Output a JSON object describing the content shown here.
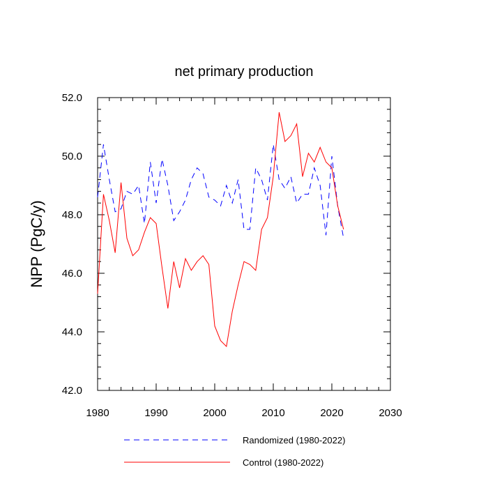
{
  "chart_data": {
    "type": "line",
    "title": "net primary production",
    "xlabel": "",
    "ylabel": "NPP  (PgC/y)",
    "xlim": [
      1980,
      2030
    ],
    "ylim": [
      42,
      52
    ],
    "xticks": [
      1980,
      1990,
      2000,
      2010,
      2020,
      2030
    ],
    "xtick_labels": [
      "1980",
      "1990",
      "2000",
      "2010",
      "2020",
      "2030"
    ],
    "yticks": [
      42,
      44,
      46,
      48,
      50,
      52
    ],
    "ytick_labels": [
      "42.0",
      "44.0",
      "46.0",
      "48.0",
      "50.0",
      "52.0"
    ],
    "grid": false,
    "legend_position": "bottom",
    "x": [
      1980,
      1981,
      1982,
      1983,
      1984,
      1985,
      1986,
      1987,
      1988,
      1989,
      1990,
      1991,
      1992,
      1993,
      1994,
      1995,
      1996,
      1997,
      1998,
      1999,
      2000,
      2001,
      2002,
      2003,
      2004,
      2005,
      2006,
      2007,
      2008,
      2009,
      2010,
      2011,
      2012,
      2013,
      2014,
      2015,
      2016,
      2017,
      2018,
      2019,
      2020,
      2021,
      2022
    ],
    "series": [
      {
        "name": "Randomized (1980-2022)",
        "color": "#0000ff",
        "dash": "dashed",
        "values": [
          48.6,
          50.4,
          49.2,
          48.1,
          48.2,
          48.8,
          48.7,
          49.0,
          47.7,
          49.8,
          48.4,
          49.9,
          49.0,
          47.8,
          48.1,
          48.5,
          49.2,
          49.6,
          49.4,
          48.6,
          48.5,
          48.3,
          49.0,
          48.4,
          49.2,
          47.5,
          47.5,
          49.6,
          49.2,
          48.5,
          50.4,
          49.2,
          48.9,
          49.3,
          48.4,
          48.7,
          48.7,
          49.6,
          49.0,
          47.3,
          50.0,
          48.3,
          47.2
        ]
      },
      {
        "name": "Control (1980-2022)",
        "color": "#ff0000",
        "dash": "solid",
        "values": [
          45.3,
          48.7,
          47.8,
          46.7,
          49.1,
          47.2,
          46.6,
          46.8,
          47.4,
          47.9,
          47.7,
          46.2,
          44.8,
          46.4,
          45.5,
          46.5,
          46.1,
          46.4,
          46.6,
          46.3,
          44.2,
          43.7,
          43.5,
          44.7,
          45.6,
          46.4,
          46.3,
          46.1,
          47.5,
          47.9,
          49.3,
          51.5,
          50.5,
          50.7,
          51.1,
          49.3,
          50.1,
          49.8,
          50.3,
          49.8,
          49.6,
          48.3,
          47.5
        ]
      }
    ]
  }
}
